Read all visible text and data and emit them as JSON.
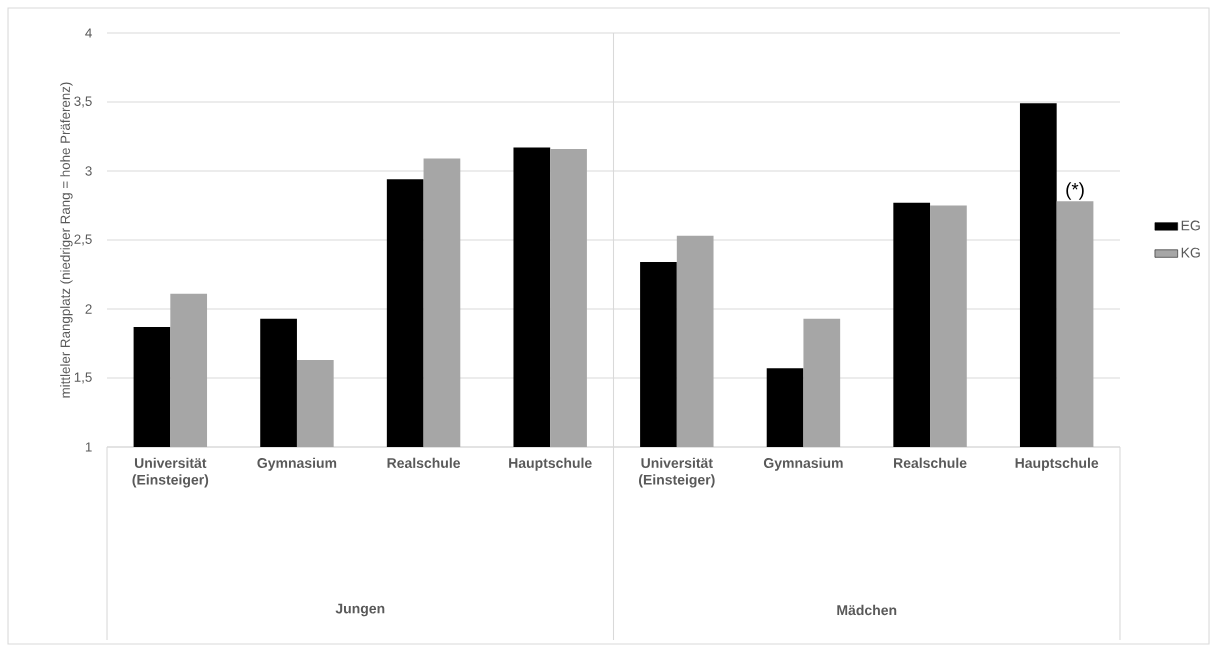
{
  "chart_data": {
    "type": "bar",
    "ylabel": "mittleler Rangplatz (niedriger Rang = hohe Präferenz)",
    "categories": [
      "Universität (Einsteiger)",
      "Gymnasium",
      "Realschule",
      "Hauptschule",
      "Universität (Einsteiger)",
      "Gymnasium",
      "Realschule",
      "Hauptschule"
    ],
    "series": [
      {
        "name": "EG",
        "color": "#000000",
        "values": [
          1.87,
          1.93,
          2.94,
          3.17,
          2.34,
          1.57,
          2.77,
          3.49
        ]
      },
      {
        "name": "KG",
        "color": "#a6a6a6",
        "values": [
          2.11,
          1.63,
          3.09,
          3.16,
          2.53,
          1.93,
          2.75,
          2.78
        ]
      }
    ],
    "ylim": [
      1,
      4
    ],
    "yticks": [
      1,
      {
        "value": 1.5,
        "label": "1,5"
      },
      2,
      {
        "value": 2.5,
        "label": "2,5"
      },
      3,
      {
        "value": 3.5,
        "label": "3,5"
      },
      4
    ],
    "grid": "y",
    "legend": "right",
    "annotations": [
      "(*)",
      "Jungen",
      "Mädchen"
    ]
  }
}
